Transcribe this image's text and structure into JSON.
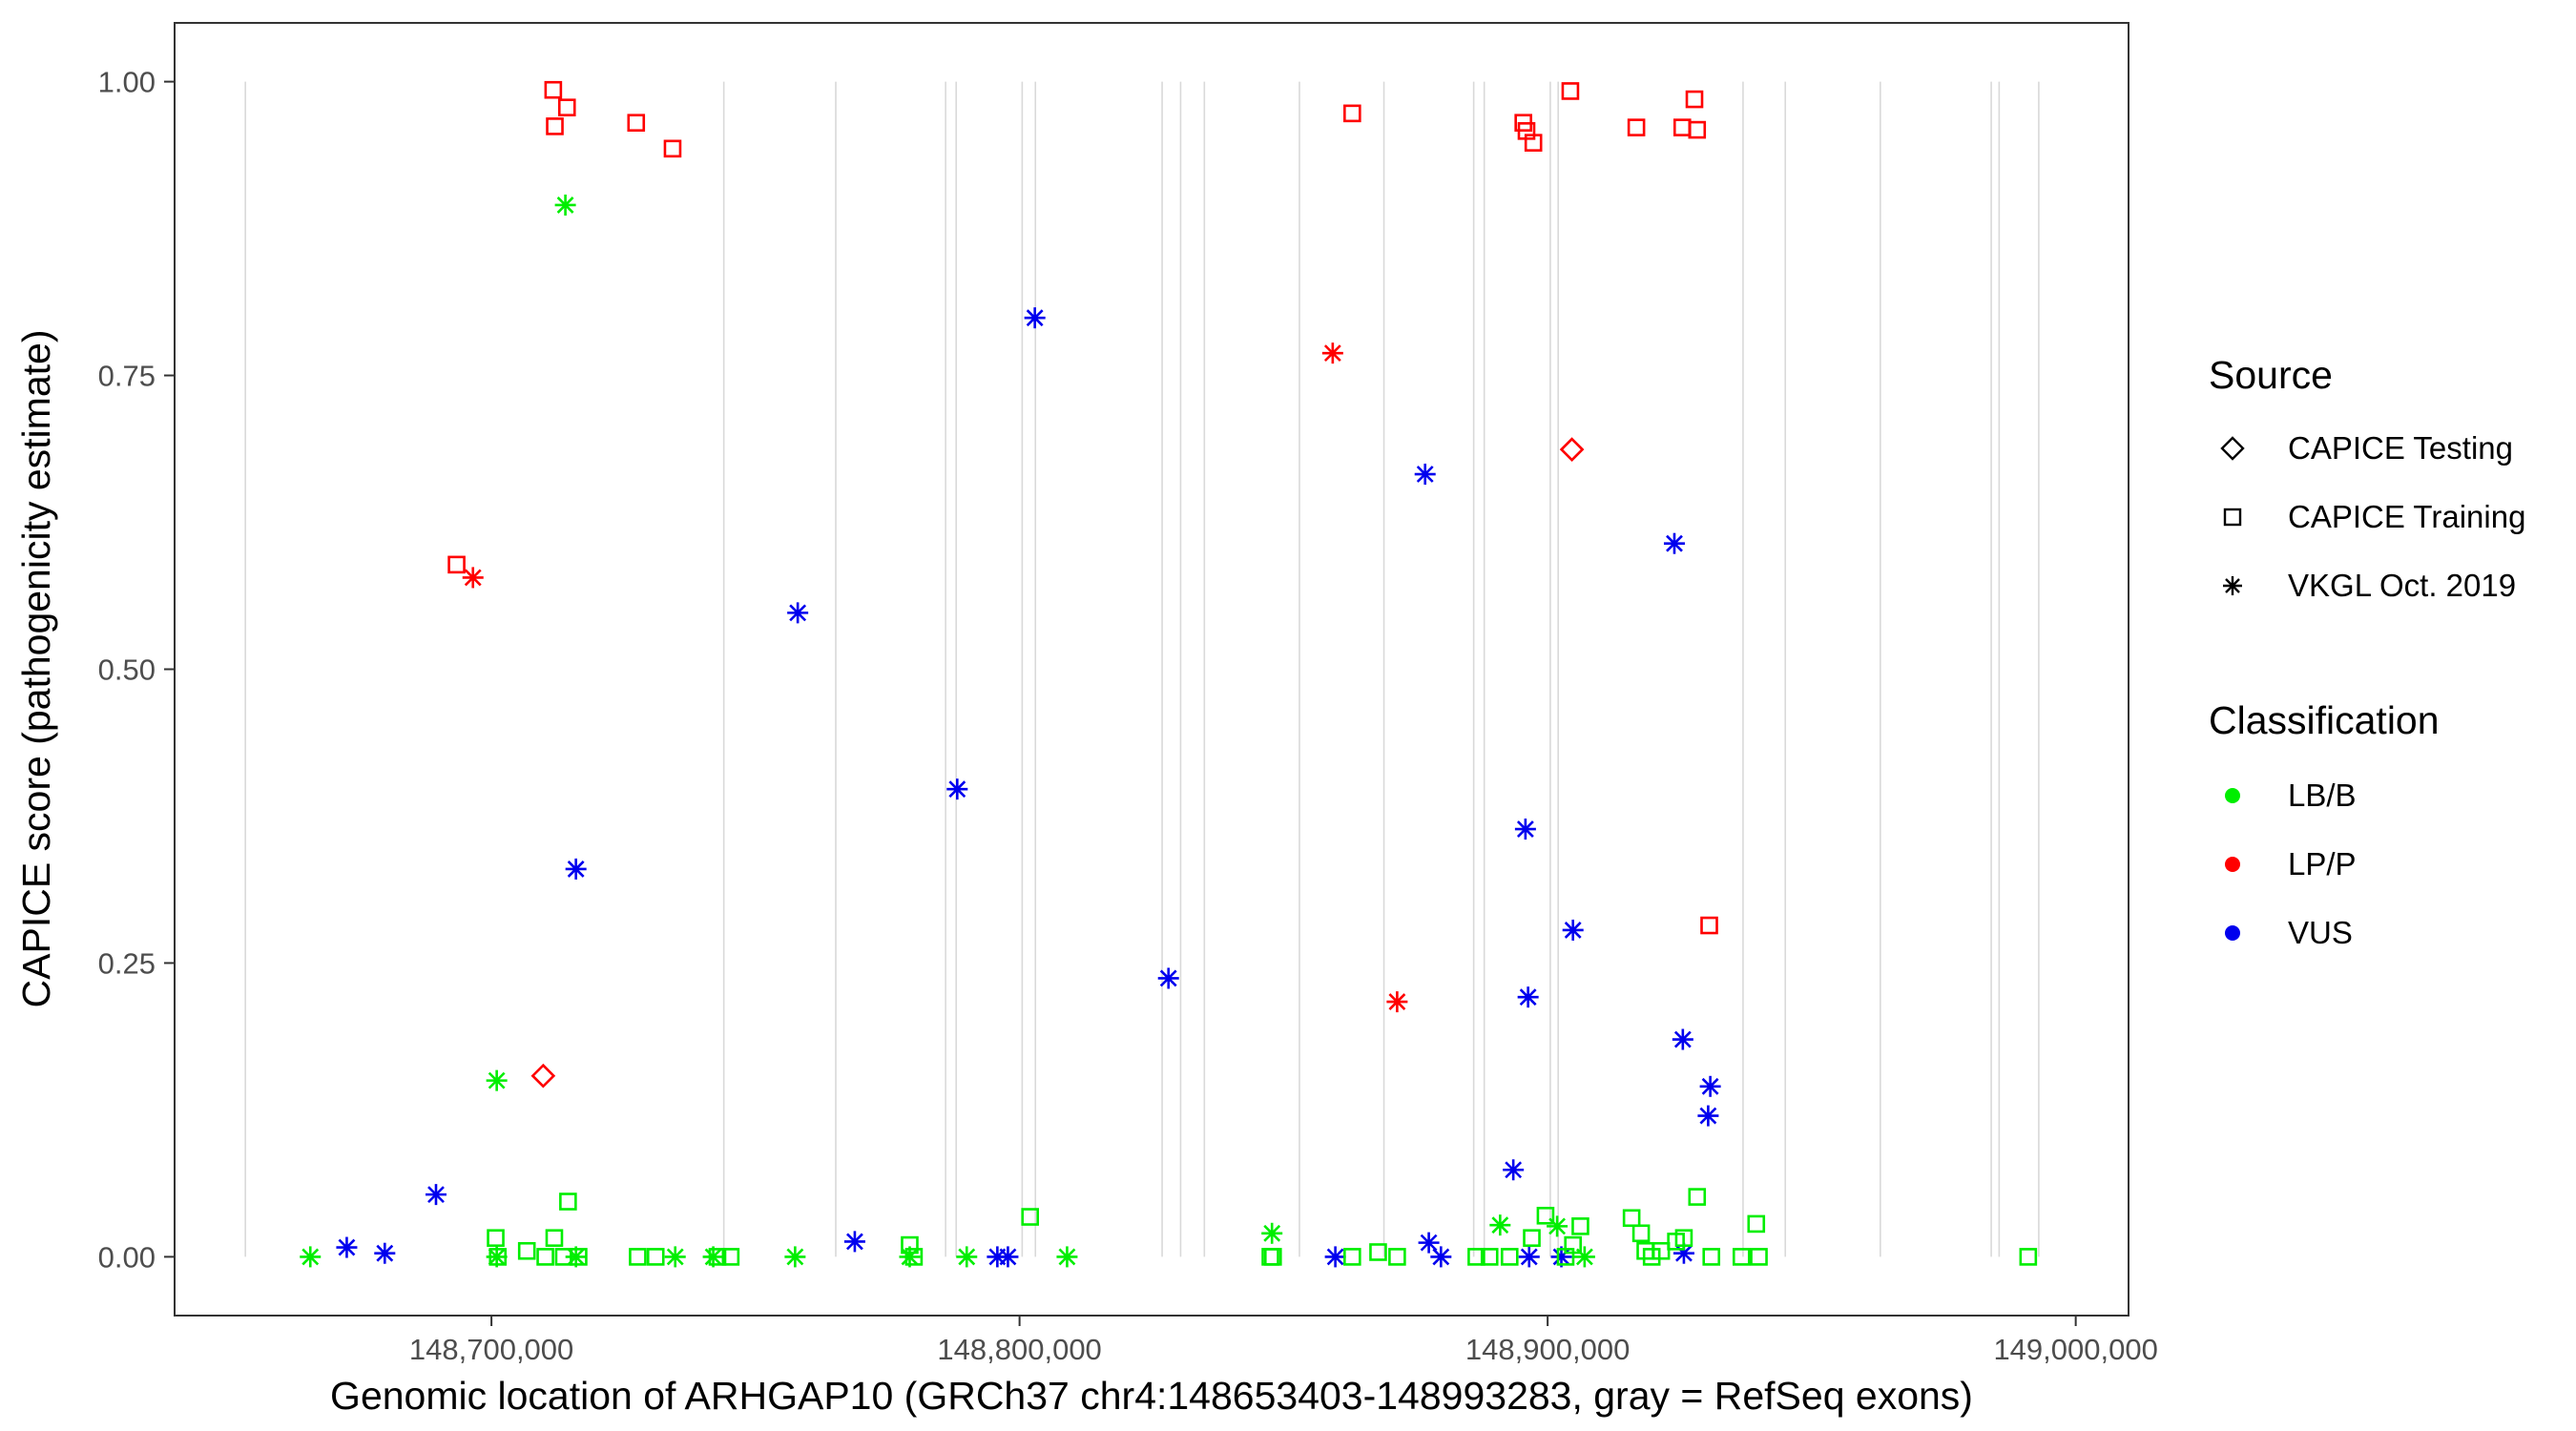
{
  "chart_data": {
    "type": "scatter",
    "xlabel": "Genomic location of ARHGAP10 (GRCh37 chr4:148653403-148993283, gray = RefSeq exons)",
    "ylabel": "CAPICE score (pathogenicity estimate)",
    "xlim": [
      148640000,
      149010000
    ],
    "ylim": [
      -0.05,
      1.05
    ],
    "x_ticks": [
      148700000,
      148800000,
      148900000,
      149000000
    ],
    "x_tick_labels": [
      "148,700,000",
      "148,800,000",
      "148,900,000",
      "149,000,000"
    ],
    "y_ticks": [
      0,
      0.25,
      0.5,
      0.75,
      1.0
    ],
    "y_tick_labels": [
      "0.00",
      "0.25",
      "0.50",
      "0.75",
      "1.00"
    ],
    "grid": false,
    "exon_lines": [
      148653400,
      148744000,
      148765200,
      148786000,
      148788000,
      148800500,
      148803000,
      148827000,
      148830500,
      148835000,
      148853000,
      148869000,
      148886000,
      148888000,
      148900500,
      148902000,
      148937000,
      148945000,
      148963000,
      148984000,
      148985500,
      148993000
    ],
    "colors": {
      "LB/B": "#00ee00",
      "LP/P": "#ff0000",
      "VUS": "#0000ee",
      "exon": "#d9d9d9",
      "axis": "#000000"
    },
    "legend_position": "right",
    "legend": {
      "source_title": "Source",
      "source_items": [
        {
          "label": "CAPICE Testing",
          "shape": "diamond"
        },
        {
          "label": "CAPICE Training",
          "shape": "square"
        },
        {
          "label": "VKGL Oct. 2019",
          "shape": "asterisk"
        }
      ],
      "class_title": "Classification",
      "class_items": [
        {
          "label": "LB/B",
          "color": "#00ee00"
        },
        {
          "label": "LP/P",
          "color": "#ff0000"
        },
        {
          "label": "VUS",
          "color": "#0000ee"
        }
      ]
    },
    "series": [
      {
        "source": "CAPICE Training",
        "classification": "LP/P",
        "shape": "square",
        "color": "#ff0000",
        "x": [
          148711700,
          148712000,
          148714300,
          148727400,
          148734300,
          148693400,
          148863000,
          148895400,
          148896000,
          148897300,
          148904300,
          148916800,
          148925500,
          148927800,
          148928300,
          148930600
        ],
        "y": [
          0.993,
          0.962,
          0.978,
          0.965,
          0.943,
          0.589,
          0.973,
          0.965,
          0.958,
          0.948,
          0.992,
          0.961,
          0.961,
          0.985,
          0.959,
          0.282
        ]
      },
      {
        "source": "CAPICE Testing",
        "classification": "LP/P",
        "shape": "diamond",
        "color": "#ff0000",
        "x": [
          148709800,
          148904600
        ],
        "y": [
          0.154,
          0.687
        ]
      },
      {
        "source": "VKGL Oct. 2019",
        "classification": "LP/P",
        "shape": "asterisk",
        "color": "#ff0000",
        "x": [
          148696500,
          148859300,
          148871500
        ],
        "y": [
          0.578,
          0.769,
          0.217
        ]
      },
      {
        "source": "VKGL Oct. 2019",
        "classification": "VUS",
        "shape": "asterisk",
        "color": "#0000ee",
        "x": [
          148802900,
          148758000,
          148788200,
          148716000,
          148828200,
          148876800,
          148924000,
          148895800,
          148904800,
          148896300,
          148893500,
          148925600,
          148930800,
          148930400,
          148689500,
          148672600,
          148679800,
          148768800,
          148795800,
          148797800,
          148859800,
          148877500,
          148879800,
          148896500,
          148902600,
          148925800
        ],
        "y": [
          0.799,
          0.548,
          0.398,
          0.33,
          0.237,
          0.666,
          0.607,
          0.364,
          0.278,
          0.221,
          0.074,
          0.185,
          0.145,
          0.12,
          0.053,
          0.008,
          0.003,
          0.013,
          0.0,
          0.0,
          0.0,
          0.012,
          0.0,
          0.0,
          0.0,
          0.003
        ]
      },
      {
        "source": "VKGL Oct. 2019",
        "classification": "LB/B",
        "shape": "asterisk",
        "color": "#00ee00",
        "x": [
          148714000,
          148701000,
          148665700,
          148701000,
          148716000,
          148734800,
          148742000,
          148757500,
          148779200,
          148790000,
          148809000,
          148847800,
          148891000,
          148901800,
          148907000
        ],
        "y": [
          0.895,
          0.15,
          0.0,
          0.0,
          0.0,
          0.0,
          0.0,
          0.0,
          0.0,
          0.0,
          0.0,
          0.02,
          0.027,
          0.026,
          0.0
        ]
      },
      {
        "source": "CAPICE Training",
        "classification": "LB/B",
        "shape": "square",
        "color": "#00ee00",
        "x": [
          148700800,
          148701200,
          148706700,
          148710200,
          148711900,
          148713700,
          148714500,
          148716500,
          148727700,
          148731100,
          148742800,
          148745300,
          148779200,
          148780000,
          148802000,
          148847500,
          148848000,
          148863000,
          148867900,
          148871500,
          148886500,
          148889000,
          148892800,
          148897000,
          148899600,
          148903400,
          148904800,
          148906200,
          148915900,
          148917700,
          148918500,
          148919700,
          148921500,
          148924300,
          148925800,
          148928300,
          148931000,
          148936700,
          148939500,
          148940000,
          148991000
        ],
        "y": [
          0.016,
          0.0,
          0.005,
          0.0,
          0.016,
          0.0,
          0.047,
          0.0,
          0.0,
          0.0,
          0.0,
          0.0,
          0.01,
          0.0,
          0.034,
          0.0,
          0.0,
          0.0,
          0.004,
          0.0,
          0.0,
          0.0,
          0.0,
          0.016,
          0.035,
          0.0,
          0.01,
          0.026,
          0.033,
          0.02,
          0.005,
          0.0,
          0.005,
          0.013,
          0.016,
          0.051,
          0.0,
          0.0,
          0.028,
          0.0,
          0.0
        ]
      }
    ]
  }
}
